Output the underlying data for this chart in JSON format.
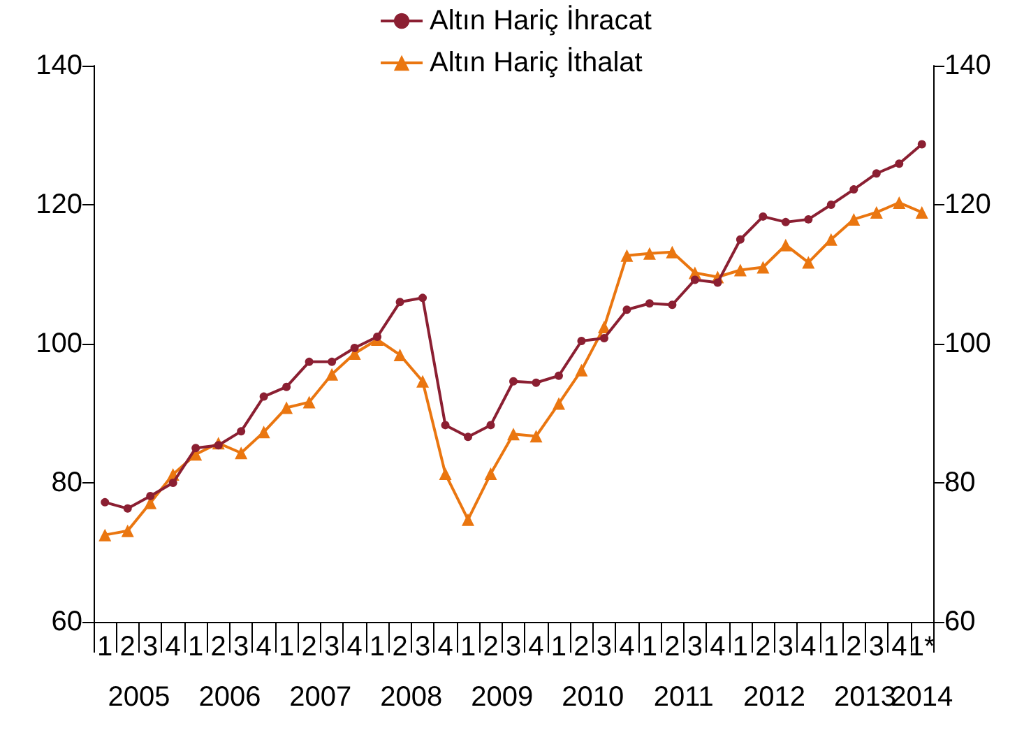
{
  "chart_data": {
    "type": "line",
    "categories": [
      "1",
      "2",
      "3",
      "4",
      "1",
      "2",
      "3",
      "4",
      "1",
      "2",
      "3",
      "4",
      "1",
      "2",
      "3",
      "4",
      "1",
      "2",
      "3",
      "4",
      "1",
      "2",
      "3",
      "4",
      "1",
      "2",
      "3",
      "4",
      "1",
      "2",
      "3",
      "4",
      "1",
      "2",
      "3",
      "4",
      "1*"
    ],
    "annotations": [
      "2005",
      "2006",
      "2007",
      "2008",
      "2009",
      "2010",
      "2011",
      "2012",
      "2013",
      "2014"
    ],
    "series": [
      {
        "name": "Altın Hariç İhracat",
        "color": "#8b1f32",
        "marker": "circle",
        "values": [
          77.2,
          76.3,
          78.1,
          80,
          85,
          85.4,
          87.4,
          92.4,
          93.8,
          97.4,
          97.4,
          99.4,
          101,
          106,
          106.6,
          88.3,
          86.6,
          88.3,
          94.6,
          94.4,
          95.4,
          100.4,
          100.8,
          104.9,
          105.8,
          105.6,
          109.2,
          108.8,
          115,
          118.3,
          117.5,
          117.9,
          120,
          122.2,
          124.5,
          125.9,
          128.7
        ]
      },
      {
        "name": "Altın Hariç İthalat",
        "color": "#ea7610",
        "marker": "triangle",
        "values": [
          72.5,
          73.1,
          77.1,
          81.2,
          84.1,
          85.7,
          84.3,
          87.3,
          90.8,
          91.6,
          95.6,
          98.6,
          100.6,
          98.4,
          94.6,
          81.3,
          74.7,
          81.3,
          87,
          86.7,
          91.4,
          96.2,
          102.4,
          112.7,
          113,
          113.2,
          110.2,
          109.6,
          110.6,
          111,
          114.2,
          111.7,
          115,
          117.9,
          118.9,
          120.3,
          118.9
        ]
      }
    ],
    "ylim": [
      60,
      140
    ],
    "yticks": [
      60,
      80,
      100,
      120,
      140
    ],
    "y2lim": [
      60,
      140
    ],
    "y2ticks": [
      60,
      80,
      100,
      120,
      140
    ],
    "grid": false,
    "legend": "top"
  }
}
